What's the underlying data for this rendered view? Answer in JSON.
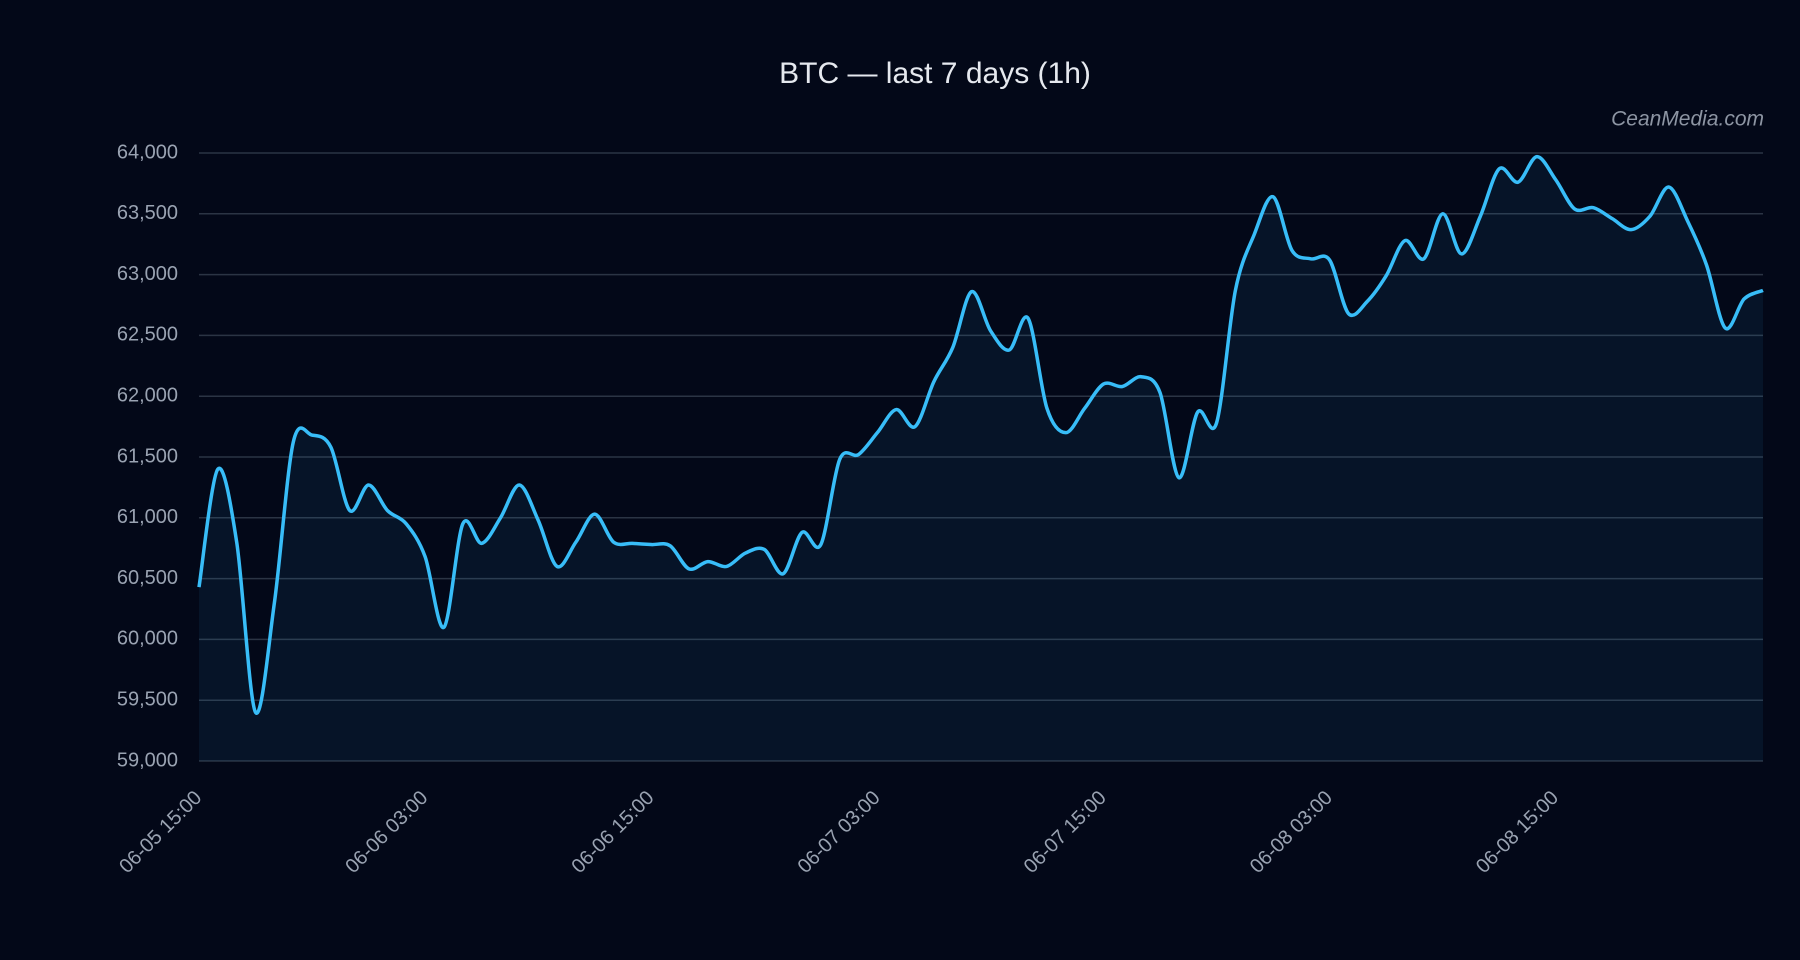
{
  "chart_data": {
    "type": "line",
    "title": "BTC — last 7 days (1h)",
    "watermark": "CeanMedia.com",
    "x": [
      "06-05 15:00",
      "06-05 16:00",
      "06-05 17:00",
      "06-05 18:00",
      "06-05 19:00",
      "06-05 20:00",
      "06-05 21:00",
      "06-05 22:00",
      "06-05 23:00",
      "06-06 00:00",
      "06-06 01:00",
      "06-06 02:00",
      "06-06 03:00",
      "06-06 04:00",
      "06-06 05:00",
      "06-06 06:00",
      "06-06 07:00",
      "06-06 08:00",
      "06-06 09:00",
      "06-06 10:00",
      "06-06 11:00",
      "06-06 12:00",
      "06-06 13:00",
      "06-06 14:00",
      "06-06 15:00",
      "06-06 16:00",
      "06-06 17:00",
      "06-06 18:00",
      "06-06 19:00",
      "06-06 20:00",
      "06-06 21:00",
      "06-06 22:00",
      "06-06 23:00",
      "06-07 00:00",
      "06-07 01:00",
      "06-07 02:00",
      "06-07 03:00",
      "06-07 04:00",
      "06-07 05:00",
      "06-07 06:00",
      "06-07 07:00",
      "06-07 08:00",
      "06-07 09:00",
      "06-07 10:00",
      "06-07 11:00",
      "06-07 12:00",
      "06-07 13:00",
      "06-07 14:00",
      "06-07 15:00",
      "06-07 16:00",
      "06-07 17:00",
      "06-07 18:00",
      "06-07 19:00",
      "06-07 20:00",
      "06-07 21:00",
      "06-07 22:00",
      "06-07 23:00",
      "06-08 00:00",
      "06-08 01:00",
      "06-08 02:00",
      "06-08 03:00",
      "06-08 04:00",
      "06-08 05:00",
      "06-08 06:00",
      "06-08 07:00",
      "06-08 08:00",
      "06-08 09:00",
      "06-08 10:00",
      "06-08 11:00",
      "06-08 12:00",
      "06-08 13:00",
      "06-08 14:00",
      "06-08 15:00",
      "06-08 16:00",
      "06-08 17:00",
      "06-08 18:00",
      "06-08 19:00",
      "06-08 20:00",
      "06-08 21:00",
      "06-08 22:00",
      "06-08 23:00",
      "06-09 00:00",
      "06-09 01:00",
      "06-09 02:00"
    ],
    "series": [
      {
        "name": "BTC",
        "color": "#38bdf8",
        "values": [
          60430,
          61400,
          60800,
          59400,
          60300,
          61620,
          61680,
          61580,
          61060,
          61270,
          61060,
          60950,
          60680,
          60100,
          60950,
          60790,
          61000,
          61270,
          60980,
          60600,
          60800,
          61030,
          60800,
          60790,
          60780,
          60770,
          60580,
          60640,
          60600,
          60710,
          60740,
          60540,
          60880,
          60780,
          61480,
          61520,
          61700,
          61890,
          61750,
          62120,
          62400,
          62860,
          62540,
          62380,
          62640,
          61900,
          61700,
          61900,
          62100,
          62080,
          62160,
          62030,
          61330,
          61870,
          61780,
          62870,
          63330,
          63640,
          63200,
          63130,
          63120,
          62680,
          62780,
          62990,
          63280,
          63130,
          63500,
          63170,
          63480,
          63870,
          63760,
          63970,
          63780,
          63540,
          63550,
          63460,
          63370,
          63480,
          63720,
          63440,
          63080,
          62560,
          62800,
          62870
        ]
      }
    ],
    "ylim": [
      59000,
      64000
    ],
    "yticks": [
      {
        "value": 59000,
        "label": "59,000"
      },
      {
        "value": 59500,
        "label": "59,500"
      },
      {
        "value": 60000,
        "label": "60,000"
      },
      {
        "value": 60500,
        "label": "60,500"
      },
      {
        "value": 61000,
        "label": "61,000"
      },
      {
        "value": 61500,
        "label": "61,500"
      },
      {
        "value": 62000,
        "label": "62,000"
      },
      {
        "value": 62500,
        "label": "62,500"
      },
      {
        "value": 63000,
        "label": "63,000"
      },
      {
        "value": 63500,
        "label": "63,500"
      },
      {
        "value": 64000,
        "label": "64,000"
      }
    ],
    "xticks": [
      "06-05 15:00",
      "06-06 03:00",
      "06-06 15:00",
      "06-07 03:00",
      "06-07 15:00",
      "06-08 03:00",
      "06-08 15:00"
    ],
    "grid": true,
    "fill_area": true
  }
}
